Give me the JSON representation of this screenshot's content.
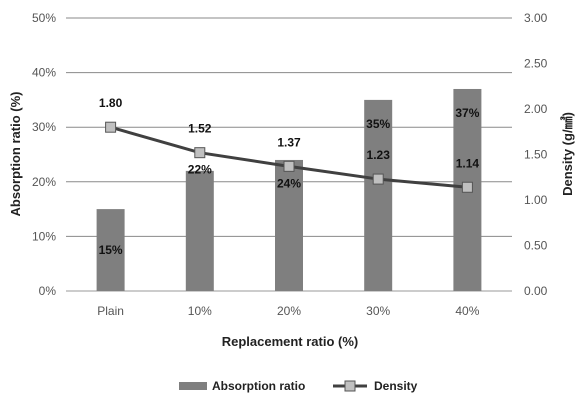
{
  "chart_data": {
    "type": "bar",
    "categories": [
      "Plain",
      "10%",
      "20%",
      "30%",
      "40%"
    ],
    "xlabel": "Replacement ratio (%)",
    "ylabel": "Absorption ratio (%)",
    "y2label": "Density (g/㎣)",
    "ylim": [
      0,
      50
    ],
    "y2lim": [
      0,
      3
    ],
    "yticks": [
      "0%",
      "10%",
      "20%",
      "30%",
      "40%",
      "50%"
    ],
    "y2ticks": [
      "0.00",
      "0.50",
      "1.00",
      "1.50",
      "2.00",
      "2.50",
      "3.00"
    ],
    "grid": true,
    "legend_position": "bottom",
    "series": [
      {
        "name": "Absorption ratio",
        "type": "bar",
        "axis": "left",
        "values": [
          15,
          22,
          24,
          35,
          37
        ],
        "labels": [
          "15%",
          "22%",
          "24%",
          "35%",
          "37%"
        ],
        "color": "#7f7f7f"
      },
      {
        "name": "Density",
        "type": "line",
        "axis": "right",
        "marker": "square",
        "values": [
          1.8,
          1.52,
          1.37,
          1.23,
          1.14
        ],
        "labels": [
          "1.80",
          "1.52",
          "1.37",
          "1.23",
          "1.14"
        ],
        "color": "#404040",
        "marker_color": "#c0c0c0"
      }
    ]
  }
}
